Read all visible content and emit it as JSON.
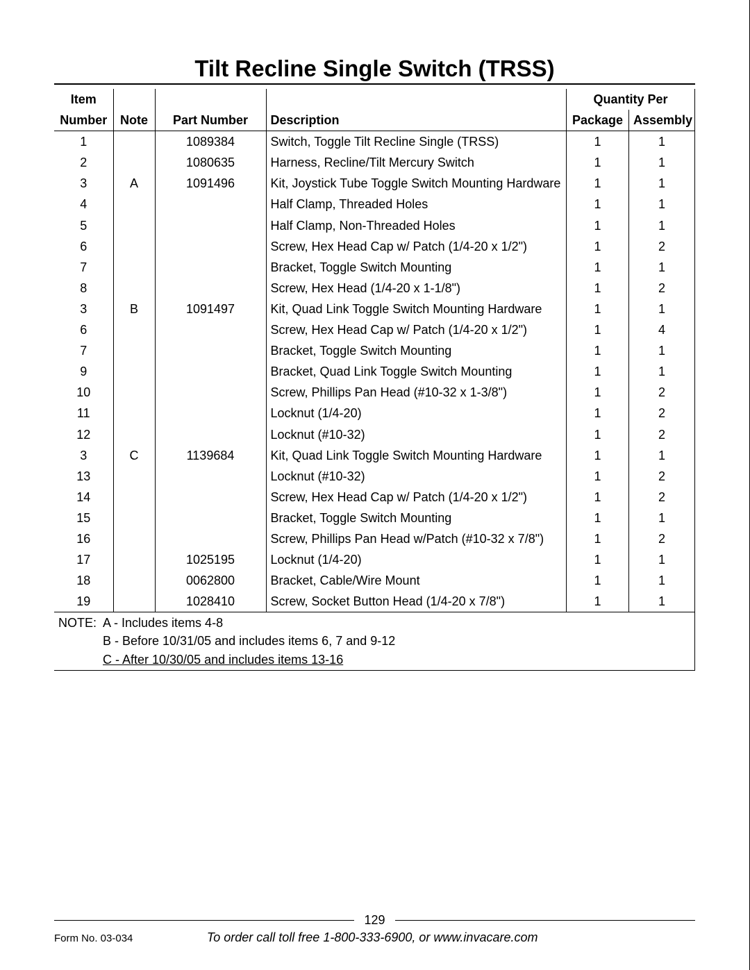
{
  "title": "Tilt Recline Single Switch (TRSS)",
  "columns": {
    "item_top": "Item",
    "item": "Number",
    "note": "Note",
    "part": "Part Number",
    "desc": "Description",
    "qty_top": "Quantity Per",
    "pkg": "Package",
    "asm": "Assembly"
  },
  "rows": [
    {
      "item": "1",
      "note": "",
      "part": "1089384",
      "desc": "Switch, Toggle Tilt Recline Single (TRSS)",
      "pkg": "1",
      "asm": "1"
    },
    {
      "item": "2",
      "note": "",
      "part": "1080635",
      "desc": "Harness, Recline/Tilt Mercury Switch",
      "pkg": "1",
      "asm": "1"
    },
    {
      "item": "3",
      "note": "A",
      "part": "1091496",
      "desc": "Kit, Joystick Tube Toggle Switch Mounting Hardware",
      "pkg": "1",
      "asm": "1"
    },
    {
      "item": "4",
      "note": "",
      "part": "",
      "desc": "Half Clamp, Threaded Holes",
      "pkg": "1",
      "asm": "1"
    },
    {
      "item": "5",
      "note": "",
      "part": "",
      "desc": "Half Clamp, Non-Threaded Holes",
      "pkg": "1",
      "asm": "1"
    },
    {
      "item": "6",
      "note": "",
      "part": "",
      "desc": "Screw, Hex Head Cap w/ Patch (1/4-20 x 1/2\")",
      "pkg": "1",
      "asm": "2"
    },
    {
      "item": "7",
      "note": "",
      "part": "",
      "desc": "Bracket, Toggle Switch Mounting",
      "pkg": "1",
      "asm": "1"
    },
    {
      "item": "8",
      "note": "",
      "part": "",
      "desc": "Screw, Hex Head (1/4-20 x 1-1/8\")",
      "pkg": "1",
      "asm": "2"
    },
    {
      "item": "3",
      "note": "B",
      "part": "1091497",
      "desc": "Kit, Quad Link Toggle Switch Mounting Hardware",
      "pkg": "1",
      "asm": "1"
    },
    {
      "item": "6",
      "note": "",
      "part": "",
      "desc": "Screw, Hex Head Cap w/ Patch (1/4-20 x 1/2\")",
      "pkg": "1",
      "asm": "4"
    },
    {
      "item": "7",
      "note": "",
      "part": "",
      "desc": "Bracket, Toggle Switch Mounting",
      "pkg": "1",
      "asm": "1"
    },
    {
      "item": "9",
      "note": "",
      "part": "",
      "desc": "Bracket, Quad Link Toggle Switch Mounting",
      "pkg": "1",
      "asm": "1"
    },
    {
      "item": "10",
      "note": "",
      "part": "",
      "desc": "Screw, Phillips Pan Head (#10-32 x 1-3/8\")",
      "pkg": "1",
      "asm": "2"
    },
    {
      "item": "11",
      "note": "",
      "part": "",
      "desc": "Locknut (1/4-20)",
      "pkg": "1",
      "asm": "2"
    },
    {
      "item": "12",
      "note": "",
      "part": "",
      "desc": "Locknut (#10-32)",
      "pkg": "1",
      "asm": "2"
    },
    {
      "item": "3",
      "note": "C",
      "part": "1139684",
      "desc": "Kit, Quad Link Toggle Switch Mounting Hardware",
      "pkg": "1",
      "asm": "1"
    },
    {
      "item": "13",
      "note": "",
      "part": "",
      "desc": "Locknut (#10-32)",
      "pkg": "1",
      "asm": "2"
    },
    {
      "item": "14",
      "note": "",
      "part": "",
      "desc": "Screw, Hex Head Cap w/ Patch (1/4-20 x 1/2\")",
      "pkg": "1",
      "asm": "2"
    },
    {
      "item": "15",
      "note": "",
      "part": "",
      "desc": "Bracket, Toggle Switch Mounting",
      "pkg": "1",
      "asm": "1"
    },
    {
      "item": "16",
      "note": "",
      "part": "",
      "desc": "Screw, Phillips Pan Head w/Patch (#10-32 x 7/8\")",
      "pkg": "1",
      "asm": "2"
    },
    {
      "item": "17",
      "note": "",
      "part": "1025195",
      "desc": "Locknut (1/4-20)",
      "pkg": "1",
      "asm": "1"
    },
    {
      "item": "18",
      "note": "",
      "part": "0062800",
      "desc": "Bracket, Cable/Wire Mount",
      "pkg": "1",
      "asm": "1"
    },
    {
      "item": "19",
      "note": "",
      "part": "1028410",
      "desc": "Screw, Socket Button Head  (1/4-20 x 7/8\")",
      "pkg": "1",
      "asm": "1"
    }
  ],
  "notes": {
    "label": "NOTE:",
    "a": "A - Includes items 4-8",
    "b": "B - Before 10/31/05 and includes items 6, 7 and 9-12",
    "c": "C - After 10/30/05 and includes items 13-16"
  },
  "footer": {
    "page": "129",
    "form": "Form No.  03-034",
    "order": "To order call toll free 1-800-333-6900, or www.invacare.com"
  }
}
